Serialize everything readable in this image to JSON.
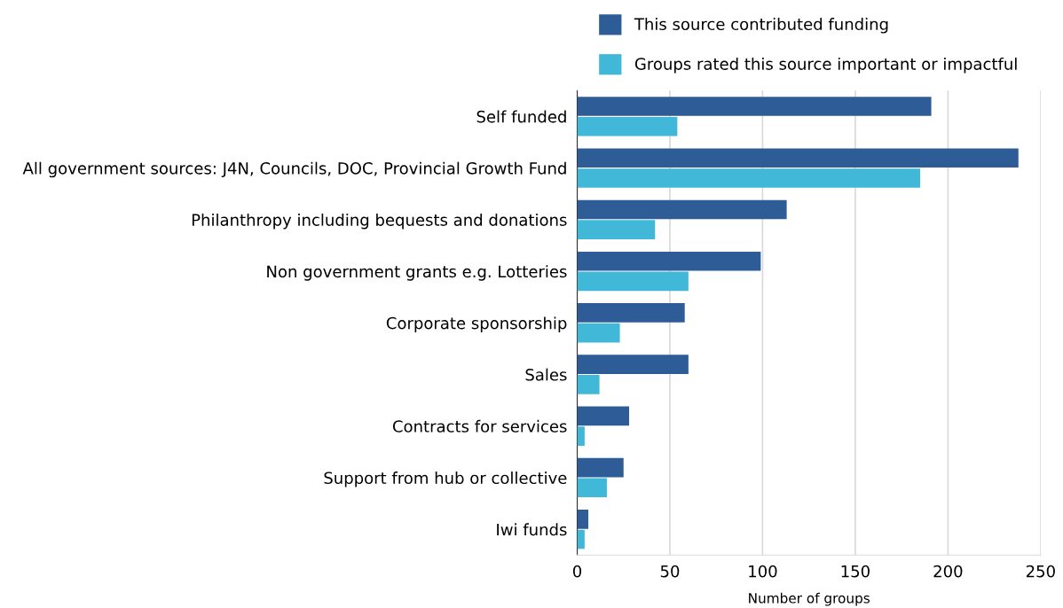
{
  "chart_data": {
    "type": "bar",
    "orientation": "horizontal",
    "xlabel": "Number of groups",
    "categories": [
      "Self funded",
      "All government sources: J4N, Councils, DOC, Provincial Growth Fund",
      "Philanthropy including bequests and donations",
      "Non government grants e.g. Lotteries",
      "Corporate sponsorship",
      "Sales",
      "Contracts for services",
      "Support from hub or collective",
      "Iwi funds"
    ],
    "series": [
      {
        "name": "This source contributed funding",
        "color": "#2e5c97",
        "values": [
          191,
          238,
          113,
          99,
          58,
          60,
          28,
          25,
          6
        ]
      },
      {
        "name": "Groups rated this source important or impactful",
        "color": "#42b8d8",
        "values": [
          54,
          185,
          42,
          60,
          23,
          12,
          4,
          16,
          4
        ]
      }
    ],
    "xlim": [
      0,
      250
    ],
    "xticks": [
      0,
      50,
      100,
      150,
      200,
      250
    ],
    "grid": "x",
    "legend": "top"
  }
}
